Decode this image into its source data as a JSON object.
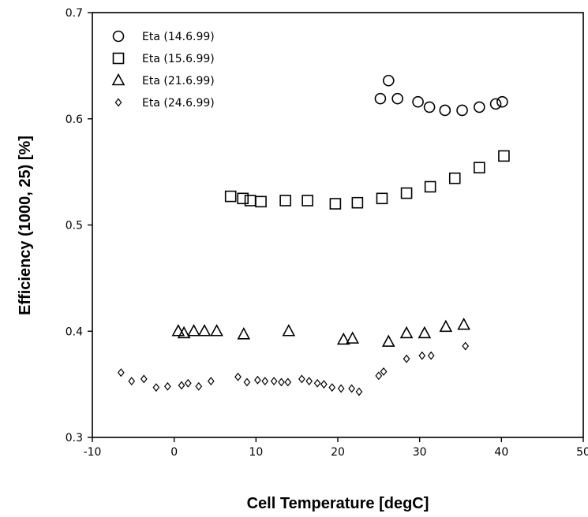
{
  "chart_data": {
    "type": "scatter",
    "xlabel": "Cell Temperature [degC]",
    "ylabel": "Efficiency (1000, 25) [%]",
    "xlim": [
      -10,
      50
    ],
    "ylim": [
      0.3,
      0.7
    ],
    "xticks": [
      "-10",
      "0",
      "10",
      "20",
      "30",
      "40",
      "50"
    ],
    "yticks": [
      "0.3",
      "0.4",
      "0.5",
      "0.6",
      "0.7"
    ],
    "grid": false,
    "legend_position": "top-left",
    "series": [
      {
        "name": "Eta (14.6.99)",
        "marker": "circle",
        "color": "#000000",
        "points": [
          [
            25.2,
            0.619
          ],
          [
            26.2,
            0.636
          ],
          [
            27.3,
            0.619
          ],
          [
            29.8,
            0.616
          ],
          [
            31.2,
            0.611
          ],
          [
            33.1,
            0.608
          ],
          [
            35.2,
            0.608
          ],
          [
            37.3,
            0.611
          ],
          [
            39.3,
            0.614
          ],
          [
            40.1,
            0.616
          ]
        ]
      },
      {
        "name": "Eta (15.6.99)",
        "marker": "square",
        "color": "#000000",
        "points": [
          [
            6.9,
            0.527
          ],
          [
            8.4,
            0.525
          ],
          [
            9.3,
            0.523
          ],
          [
            10.6,
            0.522
          ],
          [
            13.6,
            0.523
          ],
          [
            16.3,
            0.523
          ],
          [
            19.7,
            0.52
          ],
          [
            22.4,
            0.521
          ],
          [
            25.4,
            0.525
          ],
          [
            28.4,
            0.53
          ],
          [
            31.3,
            0.536
          ],
          [
            34.3,
            0.544
          ],
          [
            37.3,
            0.554
          ],
          [
            40.3,
            0.565
          ]
        ]
      },
      {
        "name": "Eta (21.6.99)",
        "marker": "triangle",
        "color": "#000000",
        "points": [
          [
            0.5,
            0.4
          ],
          [
            1.2,
            0.398
          ],
          [
            2.4,
            0.4
          ],
          [
            3.7,
            0.4
          ],
          [
            5.2,
            0.4
          ],
          [
            8.5,
            0.397
          ],
          [
            14.0,
            0.4
          ],
          [
            20.7,
            0.392
          ],
          [
            21.8,
            0.393
          ],
          [
            26.2,
            0.39
          ],
          [
            28.4,
            0.398
          ],
          [
            30.6,
            0.398
          ],
          [
            33.2,
            0.404
          ],
          [
            35.4,
            0.406
          ]
        ]
      },
      {
        "name": "Eta (24.6.99)",
        "marker": "diamond",
        "color": "#000000",
        "points": [
          [
            -6.5,
            0.361
          ],
          [
            -5.2,
            0.353
          ],
          [
            -3.7,
            0.355
          ],
          [
            -2.2,
            0.347
          ],
          [
            -0.8,
            0.348
          ],
          [
            0.9,
            0.349
          ],
          [
            1.7,
            0.351
          ],
          [
            3.0,
            0.348
          ],
          [
            4.5,
            0.353
          ],
          [
            7.8,
            0.357
          ],
          [
            8.9,
            0.352
          ],
          [
            10.2,
            0.354
          ],
          [
            11.1,
            0.353
          ],
          [
            12.2,
            0.353
          ],
          [
            13.1,
            0.352
          ],
          [
            13.9,
            0.352
          ],
          [
            15.6,
            0.355
          ],
          [
            16.5,
            0.353
          ],
          [
            17.5,
            0.351
          ],
          [
            18.3,
            0.35
          ],
          [
            19.3,
            0.347
          ],
          [
            20.4,
            0.346
          ],
          [
            21.7,
            0.346
          ],
          [
            22.6,
            0.343
          ],
          [
            25.0,
            0.358
          ],
          [
            25.6,
            0.362
          ],
          [
            28.4,
            0.374
          ],
          [
            30.3,
            0.377
          ],
          [
            31.4,
            0.377
          ],
          [
            35.6,
            0.386
          ]
        ]
      }
    ]
  }
}
